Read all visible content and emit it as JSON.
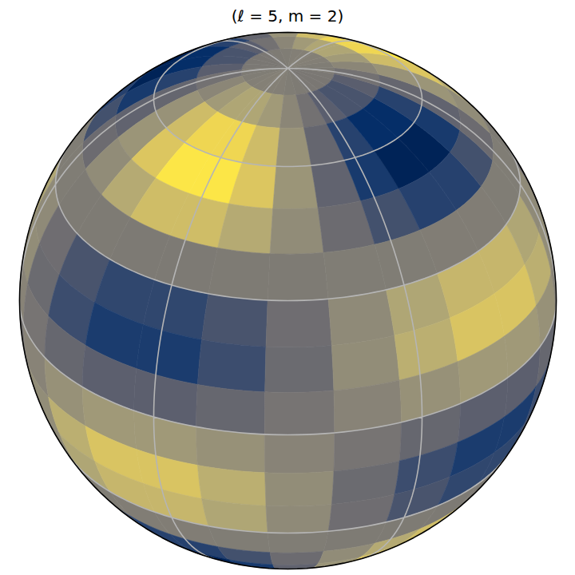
{
  "chart_data": {
    "type": "heatmap",
    "title": "(ℓ = 5, m = 2)",
    "grid": true,
    "tick_labels": false,
    "zlim": [
      -1,
      1
    ],
    "lon_edges": [
      -35,
      -20,
      -5,
      10,
      25,
      40,
      55,
      70,
      85,
      100,
      115,
      130,
      145,
      160,
      175,
      190,
      205,
      220,
      235,
      250,
      265,
      280,
      295,
      310,
      325
    ],
    "lat_edges": [
      90,
      80,
      70,
      60,
      50,
      40,
      30,
      20,
      10,
      0,
      -10,
      -20,
      -30,
      -40,
      -50,
      -60,
      -70,
      -80,
      -90
    ],
    "values": [
      [
        0.05,
        0.04,
        0.01,
        -0.01,
        -0.04,
        -0.05,
        -0.05,
        -0.04,
        -0.01,
        0.01,
        0.04,
        0.05,
        0.05,
        0.04,
        0.01,
        -0.01,
        -0.04,
        -0.05,
        -0.05,
        -0.04,
        -0.01,
        0.01,
        0.04,
        0.05
      ],
      [
        0.42,
        0.31,
        0.11,
        -0.11,
        -0.31,
        -0.42,
        -0.42,
        -0.31,
        -0.11,
        0.11,
        0.31,
        0.42,
        0.42,
        0.31,
        0.11,
        -0.11,
        -0.31,
        -0.42,
        -0.42,
        -0.31,
        -0.11,
        0.11,
        0.31,
        0.42
      ],
      [
        0.84,
        0.62,
        0.23,
        -0.23,
        -0.62,
        -0.84,
        -0.84,
        -0.62,
        -0.23,
        0.23,
        0.62,
        0.84,
        0.84,
        0.62,
        0.23,
        -0.23,
        -0.62,
        -0.84,
        -0.84,
        -0.62,
        -0.23,
        0.23,
        0.62,
        0.84
      ],
      [
        0.97,
        0.71,
        0.26,
        -0.26,
        -0.71,
        -0.97,
        -0.97,
        -0.71,
        -0.26,
        0.26,
        0.71,
        0.97,
        0.97,
        0.71,
        0.26,
        -0.26,
        -0.71,
        -0.97,
        -0.97,
        -0.71,
        -0.26,
        0.26,
        0.71,
        0.97
      ],
      [
        0.63,
        0.46,
        0.17,
        -0.17,
        -0.46,
        -0.63,
        -0.63,
        -0.46,
        -0.17,
        0.17,
        0.46,
        0.63,
        0.63,
        0.46,
        0.17,
        -0.17,
        -0.46,
        -0.63,
        -0.63,
        -0.46,
        -0.17,
        0.17,
        0.46,
        0.63
      ],
      [
        -0.02,
        -0.01,
        -0.01,
        0.01,
        0.01,
        0.02,
        0.02,
        0.01,
        0.01,
        -0.01,
        -0.01,
        -0.02,
        -0.02,
        -0.01,
        -0.01,
        0.01,
        0.01,
        0.02,
        0.02,
        0.01,
        0.01,
        -0.01,
        -0.01,
        -0.02
      ],
      [
        -0.57,
        -0.42,
        -0.15,
        0.15,
        0.42,
        0.57,
        0.57,
        0.42,
        0.15,
        -0.15,
        -0.42,
        -0.57,
        -0.57,
        -0.42,
        -0.15,
        0.15,
        0.42,
        0.57,
        0.57,
        0.42,
        0.15,
        -0.15,
        -0.42,
        -0.57
      ],
      [
        -0.69,
        -0.5,
        -0.18,
        0.18,
        0.5,
        0.69,
        0.69,
        0.5,
        0.18,
        -0.18,
        -0.5,
        -0.69,
        -0.69,
        -0.5,
        -0.18,
        0.18,
        0.5,
        0.69,
        0.69,
        0.5,
        0.18,
        -0.18,
        -0.5,
        -0.69
      ],
      [
        -0.3,
        -0.22,
        -0.08,
        0.08,
        0.22,
        0.3,
        0.3,
        0.22,
        0.08,
        -0.08,
        -0.22,
        -0.3,
        -0.3,
        -0.22,
        -0.08,
        0.08,
        0.22,
        0.3,
        0.3,
        0.22,
        0.08,
        -0.08,
        -0.22,
        -0.3
      ],
      [
        0.3,
        0.22,
        0.08,
        -0.08,
        -0.22,
        -0.3,
        -0.3,
        -0.22,
        -0.08,
        0.08,
        0.22,
        0.3,
        0.3,
        0.22,
        0.08,
        -0.08,
        -0.22,
        -0.3,
        -0.3,
        -0.22,
        -0.08,
        0.08,
        0.22,
        0.3
      ],
      [
        0.69,
        0.5,
        0.18,
        -0.18,
        -0.5,
        -0.69,
        -0.69,
        -0.5,
        -0.18,
        0.18,
        0.5,
        0.69,
        0.69,
        0.5,
        0.18,
        -0.18,
        -0.5,
        -0.69,
        -0.69,
        -0.5,
        -0.18,
        0.18,
        0.5,
        0.69
      ],
      [
        0.57,
        0.42,
        0.15,
        -0.15,
        -0.42,
        -0.57,
        -0.57,
        -0.42,
        -0.15,
        0.15,
        0.42,
        0.57,
        0.57,
        0.42,
        0.15,
        -0.15,
        -0.42,
        -0.57,
        -0.57,
        -0.42,
        -0.15,
        0.15,
        0.42,
        0.57
      ],
      [
        0.02,
        0.01,
        0.01,
        -0.01,
        -0.01,
        -0.02,
        -0.02,
        -0.01,
        -0.01,
        0.01,
        0.01,
        0.02,
        0.02,
        0.01,
        0.01,
        -0.01,
        -0.01,
        -0.02,
        -0.02,
        -0.01,
        -0.01,
        0.01,
        0.01,
        0.02
      ],
      [
        -0.63,
        -0.46,
        -0.17,
        0.17,
        0.46,
        0.63,
        0.63,
        0.46,
        0.17,
        -0.17,
        -0.46,
        -0.63,
        -0.63,
        -0.46,
        -0.17,
        0.17,
        0.46,
        0.63,
        0.63,
        0.46,
        0.17,
        -0.17,
        -0.46,
        -0.63
      ],
      [
        -0.97,
        -0.71,
        -0.26,
        0.26,
        0.71,
        0.97,
        0.97,
        0.71,
        0.26,
        -0.26,
        -0.71,
        -0.97,
        -0.97,
        -0.71,
        -0.26,
        0.26,
        0.71,
        0.97,
        0.97,
        0.71,
        0.26,
        -0.26,
        -0.71,
        -0.97
      ],
      [
        -0.84,
        -0.62,
        -0.23,
        0.23,
        0.62,
        0.84,
        0.84,
        0.62,
        0.23,
        -0.23,
        -0.62,
        -0.84,
        -0.84,
        -0.62,
        -0.23,
        0.23,
        0.62,
        0.84,
        0.84,
        0.62,
        0.23,
        -0.23,
        -0.62,
        -0.84
      ],
      [
        -0.42,
        -0.31,
        -0.11,
        0.11,
        0.31,
        0.42,
        0.42,
        0.31,
        0.11,
        -0.11,
        -0.31,
        -0.42,
        -0.42,
        -0.31,
        -0.11,
        0.11,
        0.31,
        0.42,
        0.42,
        0.31,
        0.11,
        -0.11,
        -0.31,
        -0.42
      ],
      [
        -0.05,
        -0.04,
        -0.01,
        0.01,
        0.04,
        0.05,
        0.05,
        0.04,
        0.01,
        -0.01,
        -0.04,
        -0.05,
        -0.05,
        -0.04,
        -0.01,
        0.01,
        0.04,
        0.05,
        0.05,
        0.04,
        0.01,
        -0.01,
        -0.04,
        -0.05
      ]
    ]
  }
}
